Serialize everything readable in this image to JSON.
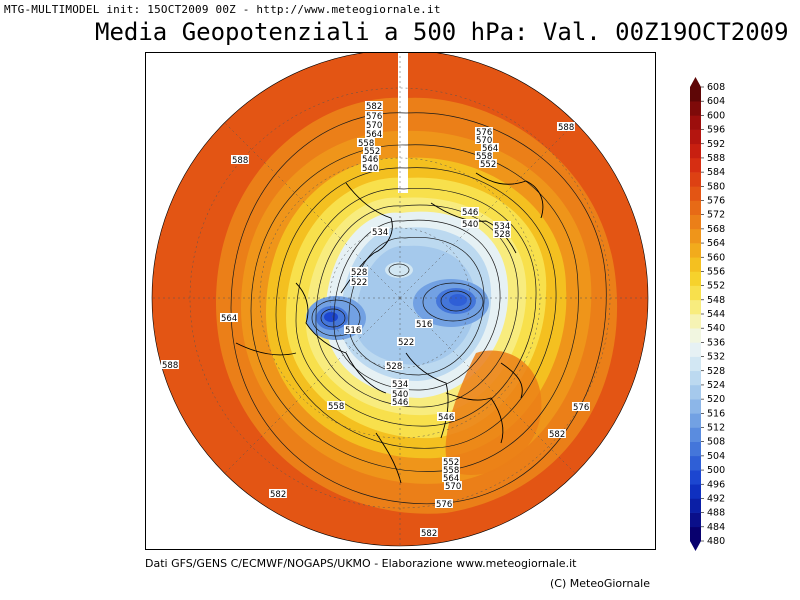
{
  "header": {
    "model_info": "MTG-MULTIMODEL init: 15OCT2009 00Z - http://www.meteogiornale.it",
    "title": "Media Geopotenziali a 500 hPa: Val. 00Z19OCT2009"
  },
  "footer": {
    "sources": "Dati GFS/GENS C/ECMWF/NOGAPS/UKMO - Elaborazione www.meteogiornale.it",
    "copyright": "(C) MeteoGiornale"
  },
  "colorbar": {
    "levels": [
      480,
      484,
      488,
      492,
      496,
      500,
      504,
      508,
      512,
      516,
      520,
      524,
      528,
      532,
      536,
      540,
      544,
      548,
      552,
      556,
      560,
      564,
      568,
      572,
      576,
      580,
      584,
      588,
      592,
      596,
      600,
      604,
      608
    ],
    "colors": [
      "#08006e",
      "#0a0f8a",
      "#0b1fa6",
      "#0f30c0",
      "#1c46d0",
      "#2f5fd6",
      "#4476da",
      "#5a8cdf",
      "#72a1e3",
      "#8cb6e8",
      "#a5c9ec",
      "#bcd9f0",
      "#d2e7f3",
      "#e6f1f4",
      "#f1f6e0",
      "#f6f3b4",
      "#f8ec7e",
      "#f8e04c",
      "#f6d22c",
      "#f4c020",
      "#f2ab1c",
      "#ef951a",
      "#eb7f18",
      "#e76a16",
      "#e35514",
      "#dd4113",
      "#d62e12",
      "#c81f10",
      "#b4150f",
      "#9c0e0c",
      "#7e0a09",
      "#5e0606"
    ]
  },
  "map": {
    "contour_labels": [
      {
        "text": "582"
      },
      {
        "text": "576"
      },
      {
        "text": "570"
      },
      {
        "text": "564"
      },
      {
        "text": "558"
      },
      {
        "text": "552"
      },
      {
        "text": "546"
      },
      {
        "text": "540"
      },
      {
        "text": "576"
      },
      {
        "text": "570"
      },
      {
        "text": "564"
      },
      {
        "text": "558"
      },
      {
        "text": "552"
      },
      {
        "text": "588"
      },
      {
        "text": "588"
      },
      {
        "text": "546"
      },
      {
        "text": "540"
      },
      {
        "text": "534"
      },
      {
        "text": "528"
      },
      {
        "text": "534"
      },
      {
        "text": "528"
      },
      {
        "text": "522"
      },
      {
        "text": "516"
      },
      {
        "text": "516"
      },
      {
        "text": "522"
      },
      {
        "text": "528"
      },
      {
        "text": "564"
      },
      {
        "text": "588"
      },
      {
        "text": "534"
      },
      {
        "text": "540"
      },
      {
        "text": "546"
      },
      {
        "text": "546"
      },
      {
        "text": "558"
      },
      {
        "text": "576"
      },
      {
        "text": "582"
      },
      {
        "text": "552"
      },
      {
        "text": "558"
      },
      {
        "text": "564"
      },
      {
        "text": "570"
      },
      {
        "text": "582"
      },
      {
        "text": "576"
      },
      {
        "text": "582"
      }
    ]
  }
}
